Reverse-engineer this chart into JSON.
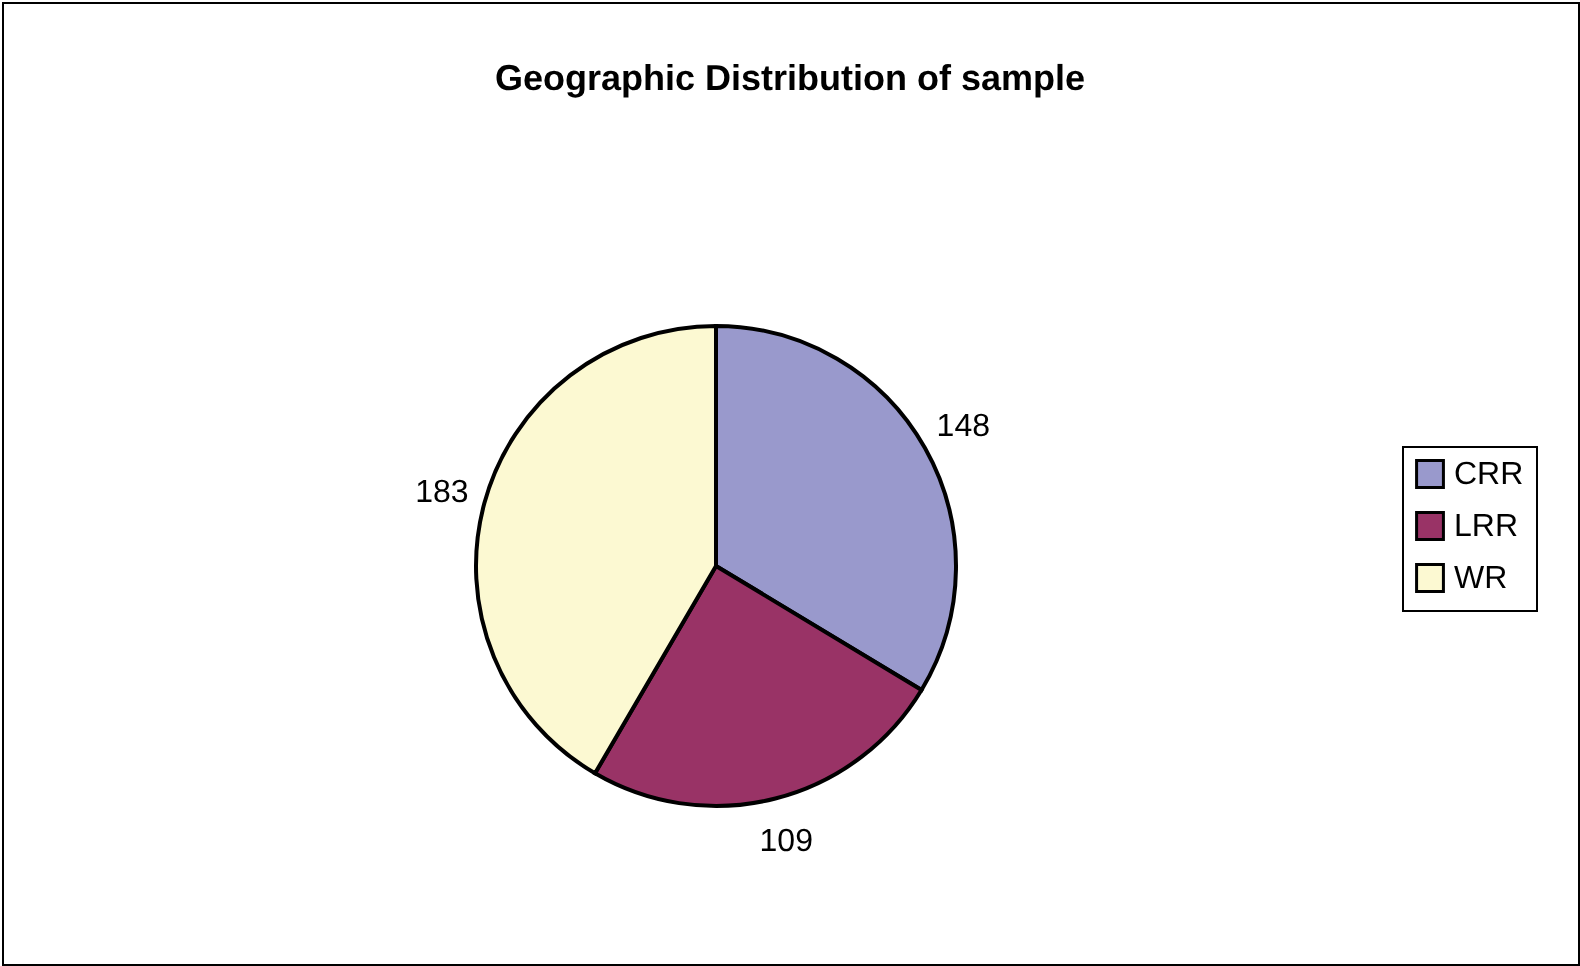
{
  "chart_data": {
    "type": "pie",
    "title": "Geographic Distribution of sample",
    "categories": [
      "CRR",
      "LRR",
      "WR"
    ],
    "values": [
      148,
      109,
      183
    ],
    "colors": [
      "#9999cc",
      "#993366",
      "#fcf9d2"
    ],
    "data_labels": true,
    "legend": "right"
  }
}
